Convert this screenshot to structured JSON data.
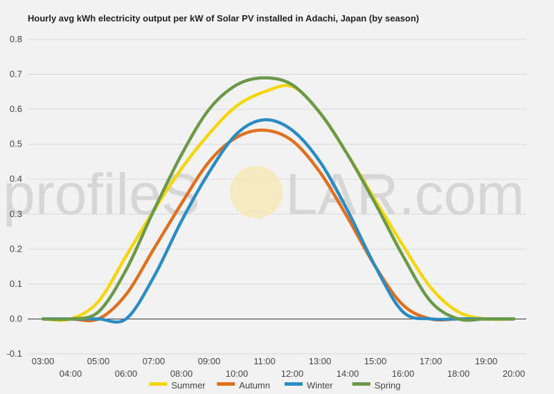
{
  "chart_data": {
    "type": "line",
    "title": "Hourly avg kWh electricity output per kW of Solar PV installed in Adachi, Japan (by season)",
    "xlabel": "",
    "ylabel": "",
    "x": [
      "03:00",
      "04:00",
      "05:00",
      "06:00",
      "07:00",
      "08:00",
      "09:00",
      "10:00",
      "11:00",
      "12:00",
      "13:00",
      "14:00",
      "15:00",
      "16:00",
      "17:00",
      "18:00",
      "19:00",
      "20:00"
    ],
    "ylim": [
      -0.1,
      0.8
    ],
    "yticks": [
      -0.1,
      0.0,
      0.1,
      0.2,
      0.3,
      0.4,
      0.5,
      0.6,
      0.7,
      0.8
    ],
    "ytick_labels": [
      "-0.1",
      "0.0",
      "0.1",
      "0.2",
      "0.3",
      "0.4",
      "0.5",
      "0.6",
      "0.7",
      "0.8"
    ],
    "grid": true,
    "legend_position": "bottom",
    "series": [
      {
        "name": "Summer",
        "color": "#f5d60a",
        "values": [
          0,
          0,
          0.05,
          0.18,
          0.31,
          0.43,
          0.53,
          0.61,
          0.65,
          0.665,
          0.59,
          0.47,
          0.34,
          0.21,
          0.09,
          0.02,
          0,
          0
        ]
      },
      {
        "name": "Autumn",
        "color": "#e07020",
        "values": [
          0,
          0,
          0,
          0.07,
          0.2,
          0.33,
          0.45,
          0.52,
          0.54,
          0.51,
          0.42,
          0.29,
          0.15,
          0.04,
          0,
          0,
          0,
          0
        ]
      },
      {
        "name": "Winter",
        "color": "#2b8cc4",
        "values": [
          0,
          0,
          0,
          0,
          0.12,
          0.28,
          0.42,
          0.53,
          0.57,
          0.54,
          0.45,
          0.31,
          0.15,
          0.02,
          0,
          0,
          0,
          0
        ]
      },
      {
        "name": "Spring",
        "color": "#6a9a48",
        "values": [
          0,
          0,
          0.02,
          0.14,
          0.31,
          0.47,
          0.6,
          0.67,
          0.69,
          0.67,
          0.59,
          0.47,
          0.33,
          0.18,
          0.05,
          0,
          0,
          0
        ]
      }
    ]
  },
  "watermark": {
    "left": "profileS",
    "right": "LAR.com"
  }
}
